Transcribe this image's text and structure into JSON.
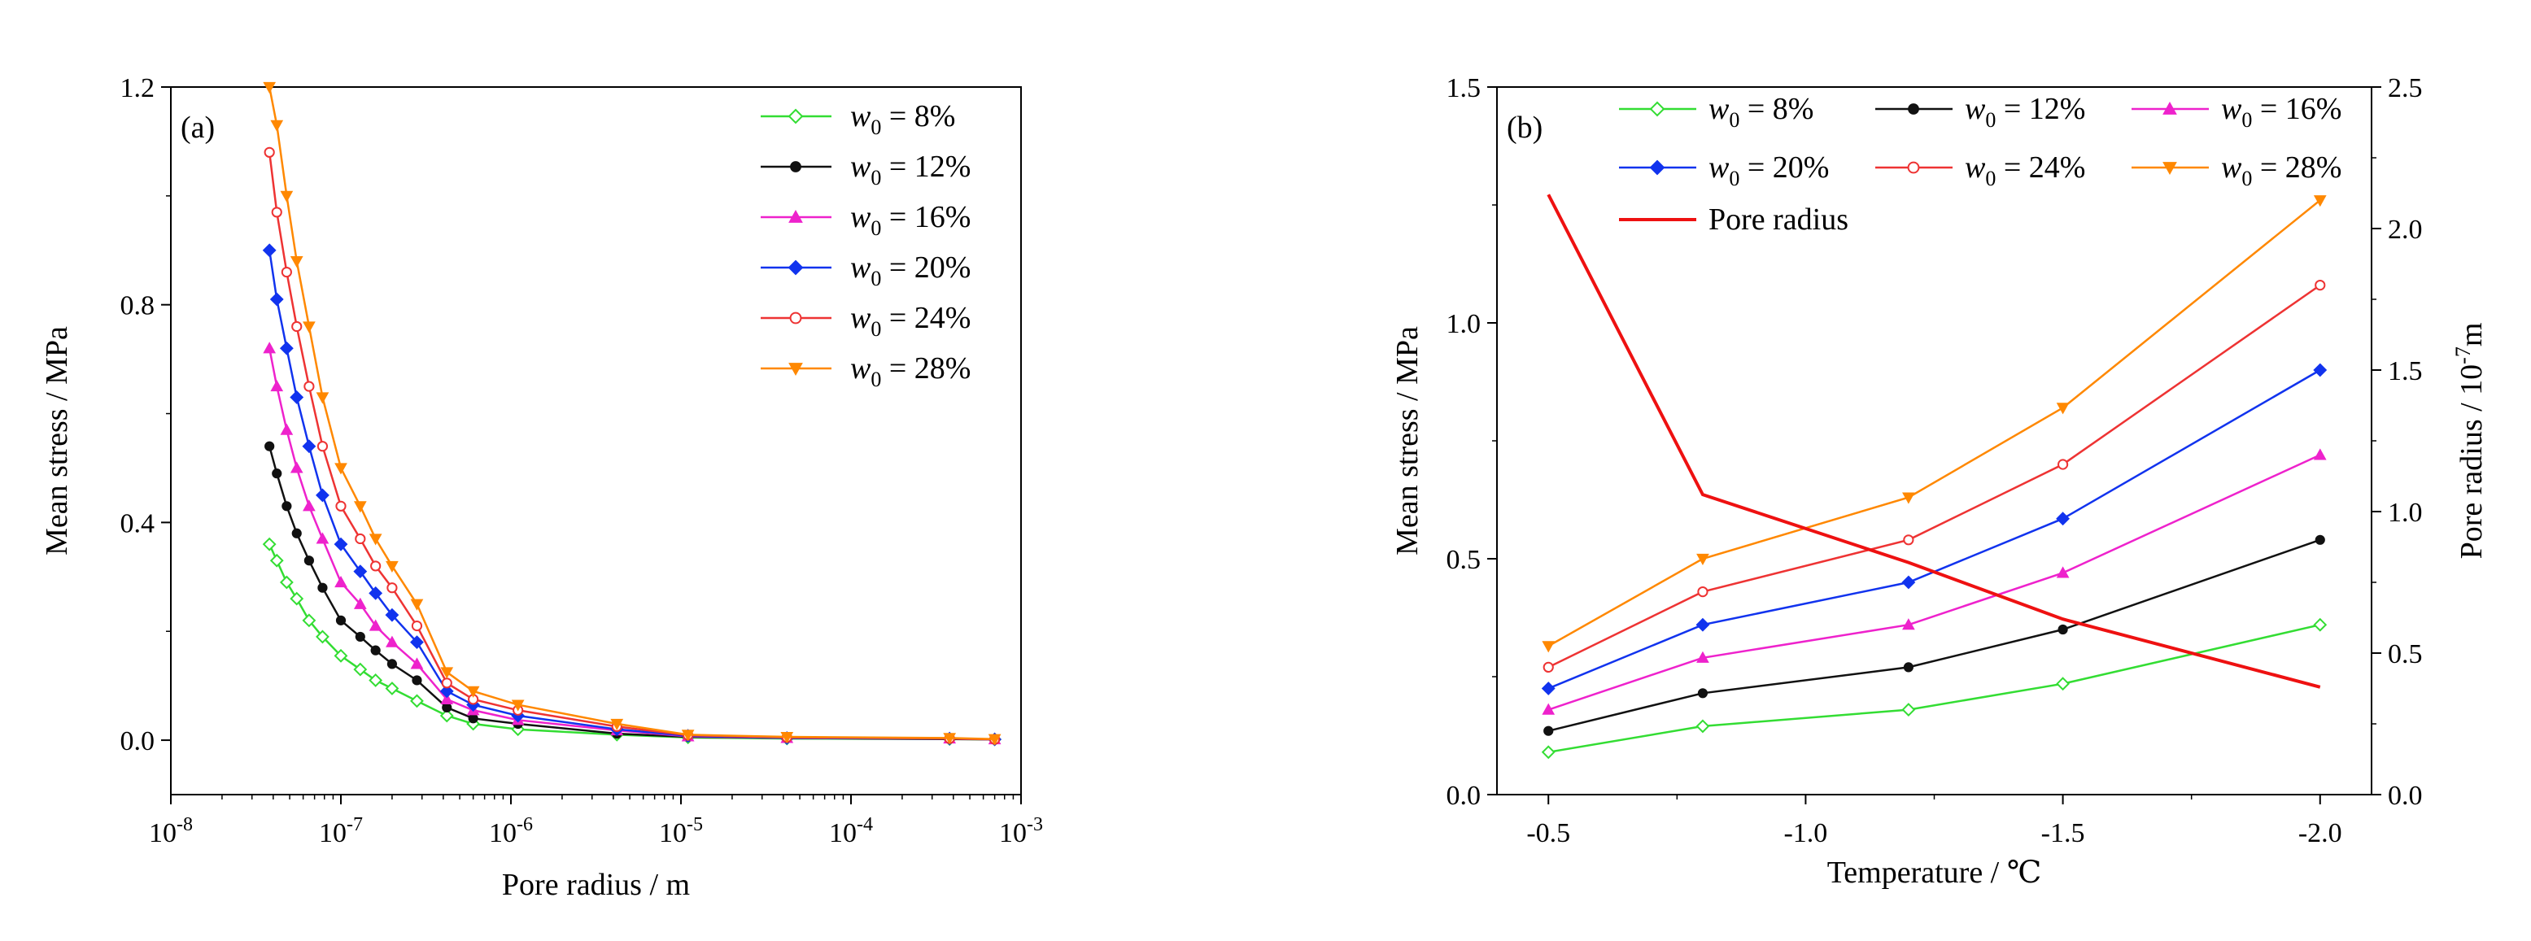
{
  "figure": {
    "colors": {
      "w8": "#33dd33",
      "w12": "#111111",
      "w16": "#ee22cc",
      "w20": "#1133ee",
      "w24": "#ee3333",
      "w28": "#ff8800",
      "pore": "#ee1111"
    }
  },
  "chart_data": [
    {
      "panel": "(a)",
      "type": "line",
      "xscale": "log",
      "xlabel": "Pore radius / m",
      "ylabel": "Mean stress / MPa",
      "xlim": [
        1e-08,
        0.001
      ],
      "ylim": [
        -0.1,
        1.2
      ],
      "xticks": [
        1e-08,
        1e-07,
        1e-06,
        1e-05,
        0.0001,
        0.001
      ],
      "xtick_labels": [
        {
          "base": "10",
          "exp": "-8"
        },
        {
          "base": "10",
          "exp": "-7"
        },
        {
          "base": "10",
          "exp": "-6"
        },
        {
          "base": "10",
          "exp": "-5"
        },
        {
          "base": "10",
          "exp": "-4"
        },
        {
          "base": "10",
          "exp": "-3"
        }
      ],
      "yticks": [
        0.0,
        0.4,
        0.8,
        1.2
      ],
      "ytick_labels": [
        "0.0",
        "0.4",
        "0.8",
        "1.2"
      ],
      "legend": {
        "location": "top-right",
        "var": "w",
        "sub": "0"
      },
      "x": [
        3.8e-08,
        4.2e-08,
        4.8e-08,
        5.5e-08,
        6.5e-08,
        7.8e-08,
        1e-07,
        1.3e-07,
        1.6e-07,
        2e-07,
        2.8e-07,
        4.2e-07,
        6e-07,
        1.1e-06,
        4.2e-06,
        1.1e-05,
        4.2e-05,
        0.00038,
        0.0007
      ],
      "series": [
        {
          "name": "= 8%",
          "key": "w8",
          "marker": "diamond-open",
          "values": [
            0.36,
            0.33,
            0.29,
            0.26,
            0.22,
            0.19,
            0.155,
            0.13,
            0.11,
            0.095,
            0.072,
            0.045,
            0.03,
            0.02,
            0.01,
            0.005,
            0.003,
            0.002,
            0.0015
          ]
        },
        {
          "name": "= 12%",
          "key": "w12",
          "marker": "circle",
          "values": [
            0.54,
            0.49,
            0.43,
            0.38,
            0.33,
            0.28,
            0.22,
            0.19,
            0.165,
            0.14,
            0.11,
            0.06,
            0.04,
            0.03,
            0.012,
            0.006,
            0.004,
            0.002,
            0.0015
          ]
        },
        {
          "name": "= 16%",
          "key": "w16",
          "marker": "triangle-up",
          "values": [
            0.72,
            0.65,
            0.57,
            0.5,
            0.43,
            0.37,
            0.29,
            0.25,
            0.21,
            0.18,
            0.14,
            0.075,
            0.055,
            0.037,
            0.018,
            0.007,
            0.004,
            0.003,
            0.0015
          ]
        },
        {
          "name": "= 20%",
          "key": "w20",
          "marker": "diamond",
          "values": [
            0.9,
            0.81,
            0.72,
            0.63,
            0.54,
            0.45,
            0.36,
            0.31,
            0.27,
            0.23,
            0.18,
            0.09,
            0.065,
            0.045,
            0.02,
            0.008,
            0.004,
            0.003,
            0.0015
          ]
        },
        {
          "name": "= 24%",
          "key": "w24",
          "marker": "circle-open",
          "values": [
            1.08,
            0.97,
            0.86,
            0.76,
            0.65,
            0.54,
            0.43,
            0.37,
            0.32,
            0.28,
            0.21,
            0.105,
            0.075,
            0.055,
            0.025,
            0.009,
            0.005,
            0.003,
            0.0015
          ]
        },
        {
          "name": "= 28%",
          "key": "w28",
          "marker": "triangle-down",
          "values": [
            1.2,
            1.13,
            1.0,
            0.88,
            0.76,
            0.63,
            0.5,
            0.43,
            0.37,
            0.32,
            0.25,
            0.125,
            0.09,
            0.065,
            0.03,
            0.01,
            0.006,
            0.004,
            0.002
          ]
        }
      ]
    },
    {
      "panel": "(b)",
      "type": "line",
      "xlabel": "Temperature / ℃",
      "ylabel": "Mean stress / MPa",
      "ylabel_right": {
        "prefix": "Pore radius / 10",
        "exp": "-7",
        "suffix": "m"
      },
      "xlim": [
        -0.4,
        -2.1
      ],
      "ylim": [
        0.0,
        1.5
      ],
      "ylim_right": [
        0.0,
        2.5
      ],
      "xticks": [
        -0.5,
        -1.0,
        -1.5,
        -2.0
      ],
      "xtick_labels": [
        "-0.5",
        "-1.0",
        "-1.5",
        "-2.0"
      ],
      "yticks": [
        0.0,
        0.5,
        1.0,
        1.5
      ],
      "ytick_labels": [
        "0.0",
        "0.5",
        "1.0",
        "1.5"
      ],
      "yticks_right": [
        0.0,
        0.5,
        1.0,
        1.5,
        2.0,
        2.5
      ],
      "ytick_labels_right": [
        "0.0",
        "0.5",
        "1.0",
        "1.5",
        "2.0",
        "2.5"
      ],
      "x": [
        -0.5,
        -0.8,
        -1.2,
        -1.5,
        -2.0
      ],
      "legend": {
        "location": "top",
        "var": "w",
        "sub": "0",
        "pore_label": "Pore radius"
      },
      "series": [
        {
          "name": "= 8%",
          "key": "w8",
          "marker": "diamond-open",
          "values": [
            0.09,
            0.145,
            0.18,
            0.235,
            0.36
          ]
        },
        {
          "name": "= 12%",
          "key": "w12",
          "marker": "circle",
          "values": [
            0.135,
            0.215,
            0.27,
            0.35,
            0.54
          ]
        },
        {
          "name": "= 16%",
          "key": "w16",
          "marker": "triangle-up",
          "values": [
            0.18,
            0.29,
            0.36,
            0.47,
            0.72
          ]
        },
        {
          "name": "= 20%",
          "key": "w20",
          "marker": "diamond",
          "values": [
            0.225,
            0.36,
            0.45,
            0.585,
            0.9
          ]
        },
        {
          "name": "= 24%",
          "key": "w24",
          "marker": "circle-open",
          "values": [
            0.27,
            0.43,
            0.54,
            0.7,
            1.08
          ]
        },
        {
          "name": "= 28%",
          "key": "w28",
          "marker": "triangle-down",
          "values": [
            0.315,
            0.5,
            0.63,
            0.82,
            1.26
          ]
        }
      ],
      "right_axis_series": {
        "name": "Pore radius",
        "key": "pore",
        "values": [
          2.12,
          1.06,
          0.82,
          0.62,
          0.38
        ]
      }
    }
  ]
}
